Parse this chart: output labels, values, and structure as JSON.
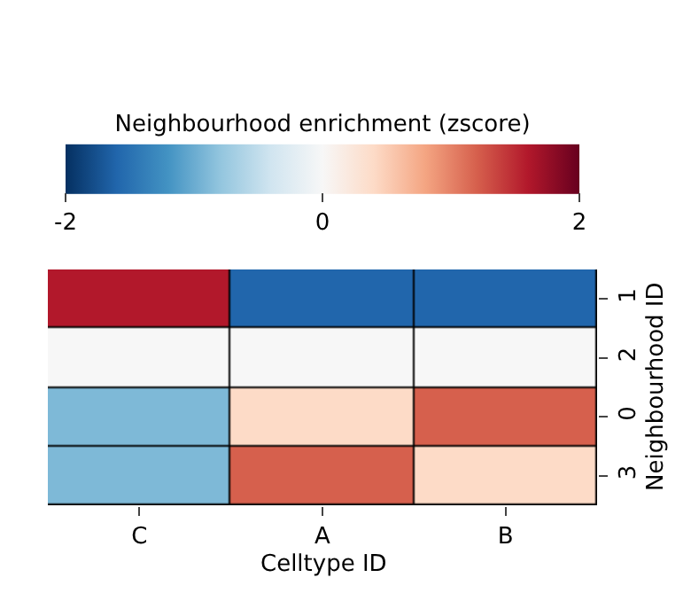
{
  "chart_data": {
    "type": "heatmap",
    "xlabel": "Celltype ID",
    "ylabel": "Neighbourhood ID",
    "clabel": "Neighbourhood enrichment (zscore)",
    "categories": [
      "C",
      "A",
      "B"
    ],
    "y_categories": [
      "1",
      "2",
      "0",
      "3"
    ],
    "cells": [
      [
        1.6,
        -1.6,
        -1.6
      ],
      [
        0,
        0,
        0
      ],
      [
        -0.9,
        0.4,
        1.2
      ],
      [
        -0.9,
        1.2,
        0.4
      ]
    ],
    "clim": [
      -2,
      2
    ],
    "cticks": [
      -2,
      0,
      2
    ]
  }
}
